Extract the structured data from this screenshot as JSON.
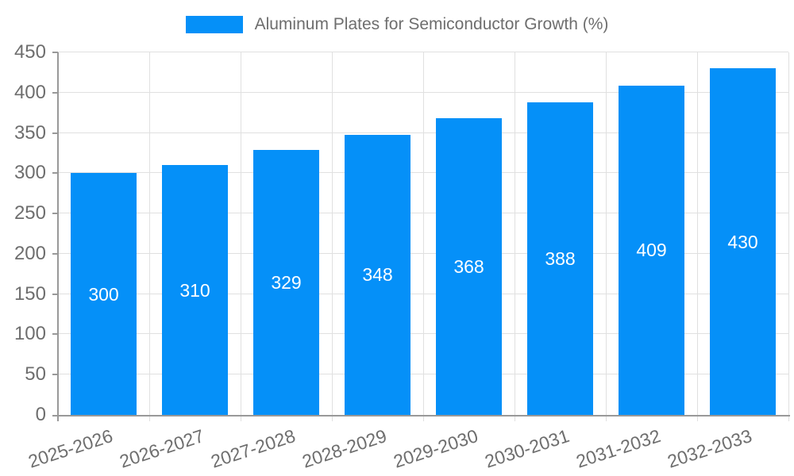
{
  "legend": {
    "label": "Aluminum Plates for Semiconductor Growth (%)"
  },
  "chart_data": {
    "type": "bar",
    "title": "",
    "categories": [
      "2025-2026",
      "2026-2027",
      "2027-2028",
      "2028-2029",
      "2029-2030",
      "2030-2031",
      "2031-2032",
      "2032-2033"
    ],
    "series": [
      {
        "name": "Aluminum Plates for Semiconductor Growth (%)",
        "values": [
          300,
          310,
          329,
          348,
          368,
          388,
          409,
          430
        ]
      }
    ],
    "xlabel": "",
    "ylabel": "",
    "ylim": [
      0,
      450
    ],
    "yticks": [
      0,
      50,
      100,
      150,
      200,
      250,
      300,
      350,
      400,
      450
    ],
    "grid": true,
    "legend_position": "top-center",
    "x_label_rotation_deg": -18,
    "value_labels_position": "inside-center"
  },
  "colors": {
    "bar": "#0590F8",
    "bar_value_text": "#FFFFFF",
    "axis_text": "#6E6E6E",
    "legend_text": "#6E6E6E",
    "grid_line": "#E0E0E0",
    "axis_line": "#999999",
    "background": "#FFFFFF"
  }
}
